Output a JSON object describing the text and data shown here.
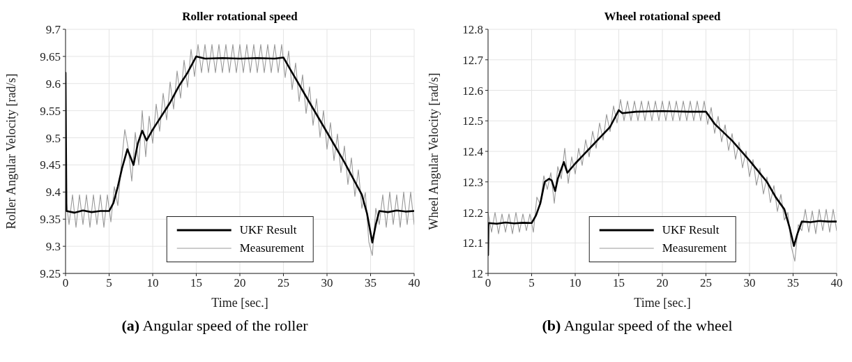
{
  "chart_data": [
    {
      "type": "line",
      "title": "Roller rotational speed",
      "xlabel": "Time [sec.]",
      "ylabel": "Roller Angular Velocity [rad/s]",
      "annotations": [
        "(a) Angular speed of the roller"
      ],
      "xlim": [
        0,
        40
      ],
      "xticks": [
        0,
        5,
        10,
        15,
        20,
        25,
        30,
        35,
        40
      ],
      "ylim": [
        9.25,
        9.7
      ],
      "yticks": [
        9.25,
        9.3,
        9.35,
        9.4,
        9.45,
        9.5,
        9.55,
        9.6,
        9.65,
        9.7
      ],
      "grid": true,
      "legend": "bottom",
      "series": [
        {
          "name": "UKF Result",
          "color": "#000000",
          "x": [
            0,
            0.1,
            1,
            2,
            3,
            4,
            5,
            5.5,
            6,
            6.5,
            7.1,
            7.8,
            8.3,
            8.8,
            9.3,
            10,
            11,
            12,
            13,
            14,
            15,
            16,
            18,
            20,
            22,
            24,
            25,
            26,
            28,
            30,
            32,
            34,
            34.6,
            35.2,
            35.6,
            36,
            37,
            38,
            39,
            40
          ],
          "values": [
            9.62,
            9.365,
            9.362,
            9.366,
            9.363,
            9.365,
            9.365,
            9.38,
            9.41,
            9.445,
            9.479,
            9.45,
            9.49,
            9.513,
            9.495,
            9.515,
            9.54,
            9.565,
            9.595,
            9.62,
            9.65,
            9.646,
            9.647,
            9.646,
            9.647,
            9.646,
            9.648,
            9.62,
            9.565,
            9.51,
            9.455,
            9.395,
            9.36,
            9.307,
            9.34,
            9.365,
            9.363,
            9.366,
            9.364,
            9.365
          ]
        },
        {
          "name": "Measurement",
          "color": "#999999",
          "x": [
            0,
            0.4,
            0.8,
            1.2,
            1.6,
            2,
            2.4,
            2.8,
            3.2,
            3.6,
            4,
            4.4,
            4.8,
            5.2,
            5.6,
            6,
            6.4,
            6.8,
            7.2,
            7.6,
            8,
            8.4,
            8.8,
            9.2,
            9.6,
            10,
            10.4,
            10.8,
            11.2,
            11.6,
            12,
            12.4,
            12.8,
            13.2,
            13.6,
            14,
            14.4,
            14.8,
            15.2,
            15.6,
            16,
            16.4,
            16.8,
            17.2,
            17.6,
            18,
            18.4,
            18.8,
            19.2,
            19.6,
            20,
            20.4,
            20.8,
            21.2,
            21.6,
            22,
            22.4,
            22.8,
            23.2,
            23.6,
            24,
            24.4,
            24.8,
            25.2,
            25.6,
            26,
            26.4,
            26.8,
            27.2,
            27.6,
            28,
            28.4,
            28.8,
            29.2,
            29.6,
            30,
            30.4,
            30.8,
            31.2,
            31.6,
            32,
            32.4,
            32.8,
            33.2,
            33.6,
            34,
            34.4,
            34.8,
            35.2,
            35.6,
            36,
            36.4,
            36.8,
            37.2,
            37.6,
            38,
            38.4,
            38.8,
            39.2,
            39.6,
            40
          ],
          "values": [
            9.395,
            9.34,
            9.395,
            9.335,
            9.395,
            9.34,
            9.395,
            9.335,
            9.395,
            9.34,
            9.395,
            9.335,
            9.395,
            9.345,
            9.41,
            9.375,
            9.45,
            9.515,
            9.48,
            9.42,
            9.51,
            9.45,
            9.55,
            9.465,
            9.54,
            9.49,
            9.562,
            9.512,
            9.582,
            9.533,
            9.603,
            9.553,
            9.623,
            9.573,
            9.643,
            9.593,
            9.663,
            9.613,
            9.672,
            9.62,
            9.672,
            9.62,
            9.672,
            9.62,
            9.672,
            9.62,
            9.672,
            9.62,
            9.672,
            9.62,
            9.672,
            9.62,
            9.672,
            9.62,
            9.672,
            9.62,
            9.672,
            9.62,
            9.672,
            9.62,
            9.672,
            9.62,
            9.672,
            9.611,
            9.66,
            9.589,
            9.638,
            9.567,
            9.616,
            9.545,
            9.594,
            9.523,
            9.572,
            9.501,
            9.55,
            9.479,
            9.528,
            9.458,
            9.507,
            9.436,
            9.485,
            9.414,
            9.463,
            9.392,
            9.441,
            9.37,
            9.399,
            9.308,
            9.283,
            9.37,
            9.34,
            9.395,
            9.335,
            9.4,
            9.34,
            9.395,
            9.335,
            9.4,
            9.34,
            9.4,
            9.34
          ]
        }
      ]
    },
    {
      "type": "line",
      "title": "Wheel rotational speed",
      "xlabel": "Time [sec.]",
      "ylabel": "Wheel Angular Velocity [rad/s]",
      "annotations": [
        "(b) Angular speed of the wheel"
      ],
      "xlim": [
        0,
        40
      ],
      "xticks": [
        0,
        5,
        10,
        15,
        20,
        25,
        30,
        35,
        40
      ],
      "ylim": [
        12,
        12.8
      ],
      "yticks": [
        12,
        12.1,
        12.2,
        12.3,
        12.4,
        12.5,
        12.6,
        12.7,
        12.8
      ],
      "grid": true,
      "legend": "bottom",
      "series": [
        {
          "name": "UKF Result",
          "color": "#000000",
          "x": [
            0,
            0.05,
            1,
            2,
            3,
            4,
            5,
            5.5,
            6,
            6.5,
            7,
            7.3,
            7.7,
            8,
            8.7,
            9.1,
            10,
            11,
            12,
            13,
            14,
            15,
            15.4,
            17,
            20,
            23,
            25,
            26,
            28,
            30,
            32,
            33,
            34,
            34.6,
            35.1,
            35.5,
            36,
            37,
            38,
            39,
            40
          ],
          "values": [
            12.06,
            12.165,
            12.163,
            12.167,
            12.164,
            12.166,
            12.165,
            12.19,
            12.23,
            12.3,
            12.31,
            12.305,
            12.27,
            12.31,
            12.365,
            12.33,
            12.36,
            12.39,
            12.42,
            12.45,
            12.48,
            12.535,
            12.525,
            12.53,
            12.532,
            12.53,
            12.53,
            12.49,
            12.435,
            12.37,
            12.3,
            12.25,
            12.21,
            12.15,
            12.09,
            12.13,
            12.17,
            12.168,
            12.172,
            12.17,
            12.17
          ]
        },
        {
          "name": "Measurement",
          "color": "#999999",
          "x": [
            0,
            0.4,
            0.8,
            1.2,
            1.6,
            2,
            2.4,
            2.8,
            3.2,
            3.6,
            4,
            4.4,
            4.8,
            5.2,
            5.6,
            6,
            6.4,
            6.8,
            7.2,
            7.6,
            8,
            8.4,
            8.8,
            9.2,
            9.6,
            10,
            10.4,
            10.8,
            11.2,
            11.6,
            12,
            12.4,
            12.8,
            13.2,
            13.6,
            14,
            14.4,
            14.8,
            15.2,
            15.6,
            16,
            16.4,
            16.8,
            17.2,
            17.6,
            18,
            18.4,
            18.8,
            19.2,
            19.6,
            20,
            20.4,
            20.8,
            21.2,
            21.6,
            22,
            22.4,
            22.8,
            23.2,
            23.6,
            24,
            24.4,
            24.8,
            25.2,
            25.6,
            26,
            26.4,
            26.8,
            27.2,
            27.6,
            28,
            28.4,
            28.8,
            29.2,
            29.6,
            30,
            30.4,
            30.8,
            31.2,
            31.6,
            32,
            32.4,
            32.8,
            33.2,
            33.6,
            34,
            34.4,
            34.8,
            35.2,
            35.6,
            36,
            36.4,
            36.8,
            37.2,
            37.6,
            38,
            38.4,
            38.8,
            39.2,
            39.6,
            40
          ],
          "values": [
            12.2,
            12.135,
            12.2,
            12.13,
            12.195,
            12.135,
            12.195,
            12.13,
            12.2,
            12.135,
            12.195,
            12.14,
            12.195,
            12.135,
            12.25,
            12.225,
            12.32,
            12.275,
            12.33,
            12.23,
            12.35,
            12.31,
            12.41,
            12.295,
            12.382,
            12.326,
            12.41,
            12.354,
            12.438,
            12.382,
            12.466,
            12.41,
            12.493,
            12.437,
            12.521,
            12.465,
            12.549,
            12.493,
            12.57,
            12.5,
            12.565,
            12.5,
            12.565,
            12.5,
            12.565,
            12.5,
            12.565,
            12.5,
            12.565,
            12.5,
            12.565,
            12.5,
            12.565,
            12.5,
            12.565,
            12.5,
            12.565,
            12.5,
            12.565,
            12.5,
            12.565,
            12.5,
            12.565,
            12.488,
            12.544,
            12.459,
            12.515,
            12.431,
            12.487,
            12.403,
            12.458,
            12.374,
            12.43,
            12.346,
            12.401,
            12.317,
            12.373,
            12.289,
            12.345,
            12.26,
            12.316,
            12.232,
            12.288,
            12.203,
            12.259,
            12.175,
            12.2,
            12.088,
            12.04,
            12.16,
            12.14,
            12.21,
            12.135,
            12.205,
            12.13,
            12.21,
            12.14,
            12.21,
            12.135,
            12.21,
            12.14
          ]
        }
      ]
    }
  ]
}
